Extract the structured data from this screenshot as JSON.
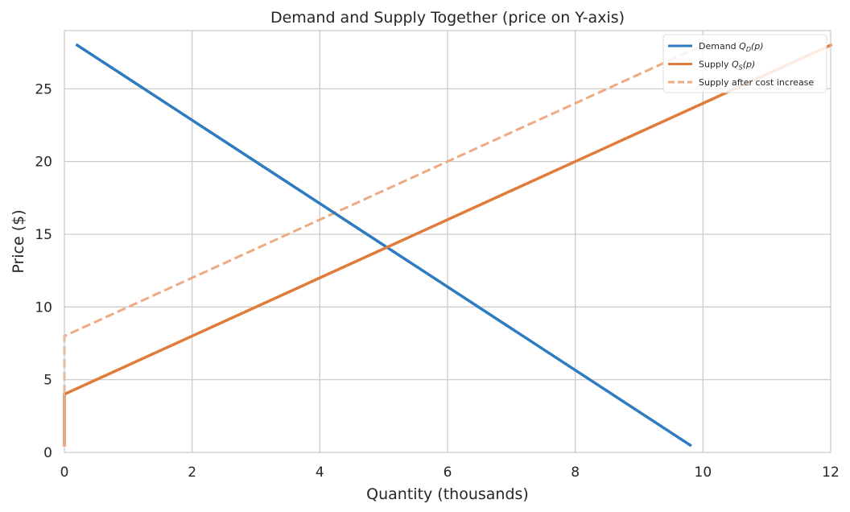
{
  "chart_data": {
    "type": "line",
    "title": "Demand and Supply Together (price on Y-axis)",
    "xlabel": "Quantity (thousands)",
    "ylabel": "Price ($)",
    "xlim": [
      0,
      12
    ],
    "ylim": [
      0,
      29
    ],
    "xticks": [
      0,
      2,
      4,
      6,
      8,
      10,
      12
    ],
    "yticks": [
      0,
      5,
      10,
      15,
      20,
      25
    ],
    "grid": true,
    "legend_position": "top-right",
    "series": [
      {
        "name": "Demand Q_D(p)",
        "legend_label": "Demand ",
        "legend_sym": "Q",
        "legend_sub": "D",
        "legend_arg": "(p)",
        "color": "#2e7bbf",
        "style": "solid",
        "x": [
          0.2,
          9.8
        ],
        "y": [
          28,
          0.5
        ]
      },
      {
        "name": "Supply Q_S(p)",
        "legend_label": "Supply ",
        "legend_sym": "Q",
        "legend_sub": "S",
        "legend_arg": "(p)",
        "color": "#e07b39",
        "style": "solid",
        "x": [
          0,
          0,
          12
        ],
        "y": [
          0.5,
          4,
          28
        ]
      },
      {
        "name": "Supply after cost increase",
        "legend_label": "Supply after cost increase",
        "legend_sym": "",
        "legend_sub": "",
        "legend_arg": "",
        "color": "#eeaa80",
        "style": "dashed",
        "x": [
          0,
          0,
          10
        ],
        "y": [
          0.5,
          8,
          28
        ]
      }
    ]
  }
}
